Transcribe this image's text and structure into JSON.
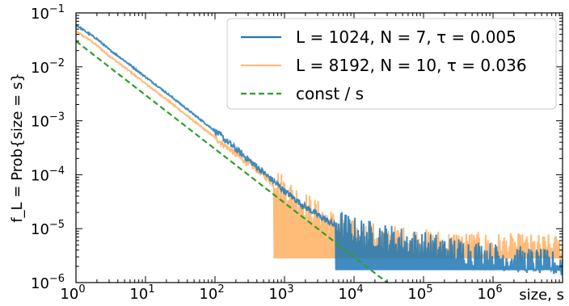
{
  "chart_data": {
    "type": "line",
    "xscale": "log",
    "yscale": "log",
    "xlim": [
      1,
      10000000
    ],
    "ylim": [
      1e-06,
      0.1
    ],
    "xlabel": "size, s",
    "ylabel": "f_L = Prob{size = s}",
    "x_ticks": [
      {
        "base": "10",
        "exp": "0",
        "value": 1
      },
      {
        "base": "10",
        "exp": "1",
        "value": 10
      },
      {
        "base": "10",
        "exp": "2",
        "value": 100
      },
      {
        "base": "10",
        "exp": "3",
        "value": 1000
      },
      {
        "base": "10",
        "exp": "4",
        "value": 10000
      },
      {
        "base": "10",
        "exp": "5",
        "value": 100000
      },
      {
        "base": "10",
        "exp": "6",
        "value": 1000000
      }
    ],
    "y_ticks": [
      {
        "base": "10",
        "exp": "−6",
        "value": 1e-06
      },
      {
        "base": "10",
        "exp": "−5",
        "value": 1e-05
      },
      {
        "base": "10",
        "exp": "−4",
        "value": 0.0001
      },
      {
        "base": "10",
        "exp": "−3",
        "value": 0.001
      },
      {
        "base": "10",
        "exp": "−2",
        "value": 0.01
      },
      {
        "base": "10",
        "exp": "−1",
        "value": 0.1
      }
    ],
    "legend_position": "top-right",
    "grid": false,
    "series": [
      {
        "name": "L = 1024, N = 7, τ = 0.005",
        "color": "#1f77b4",
        "style": "solid",
        "points": [
          [
            1,
            0.06
          ],
          [
            1.5,
            0.042
          ],
          [
            2,
            0.033
          ],
          [
            3,
            0.021
          ],
          [
            5,
            0.013
          ],
          [
            10,
            0.0065
          ],
          [
            20,
            0.0033
          ],
          [
            50,
            0.0013
          ],
          [
            100,
            0.00065
          ],
          [
            200,
            0.0003
          ],
          [
            500,
            0.00011
          ],
          [
            1000,
            5e-05
          ],
          [
            2000,
            2.5e-05
          ],
          [
            5000,
            1.2e-05
          ],
          [
            10000,
            7.5e-06
          ],
          [
            100000,
            4e-06
          ],
          [
            1000000,
            2.5e-06
          ],
          [
            10000000,
            1.7e-06
          ]
        ],
        "noise_floor": 1.7e-06,
        "noise_start_x": 5500
      },
      {
        "name": "L = 8192, N = 10, τ = 0.036",
        "color": "#ffbb78",
        "style": "solid",
        "points": [
          [
            1,
            0.045
          ],
          [
            1.5,
            0.033
          ],
          [
            2,
            0.025
          ],
          [
            3,
            0.016
          ],
          [
            5,
            0.0098
          ],
          [
            10,
            0.0049
          ],
          [
            20,
            0.0025
          ],
          [
            50,
            0.00098
          ],
          [
            100,
            0.00049
          ],
          [
            200,
            0.00024
          ],
          [
            500,
            0.0001
          ],
          [
            1000,
            4.5e-05
          ],
          [
            2000,
            2.2e-05
          ],
          [
            5000,
            1e-05
          ],
          [
            10000,
            6.5e-06
          ],
          [
            100000,
            4.5e-06
          ],
          [
            1000000,
            3.8e-06
          ],
          [
            10000000,
            3.5e-06
          ]
        ],
        "noise_floor": 2.8e-06,
        "noise_start_x": 700
      },
      {
        "name": "const / s",
        "color": "#2ca02c",
        "style": "dashed",
        "points": [
          [
            1,
            0.03
          ],
          [
            30000,
            1e-06
          ]
        ]
      }
    ]
  }
}
